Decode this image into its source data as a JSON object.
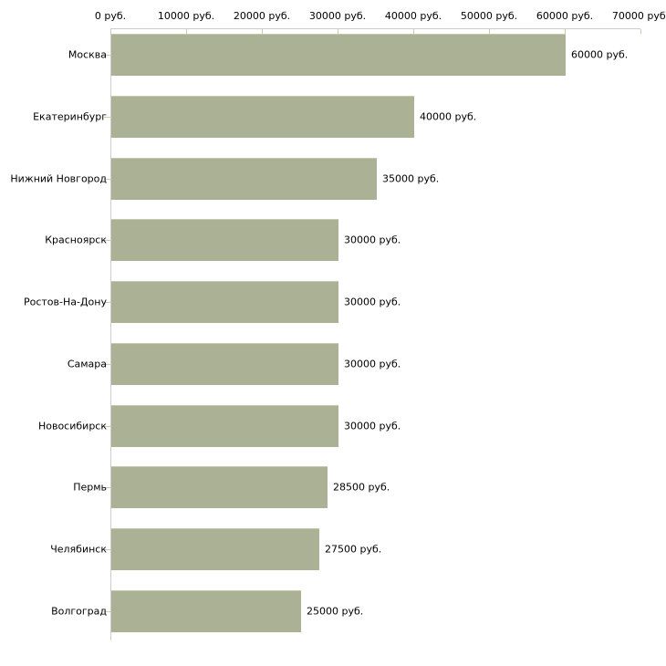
{
  "chart_data": {
    "type": "bar",
    "orientation": "horizontal",
    "title": "",
    "xlabel": "",
    "ylabel": "",
    "categories": [
      "Москва",
      "Екатеринбург",
      "Нижний Новгород",
      "Красноярск",
      "Ростов-На-Дону",
      "Самара",
      "Новосибирск",
      "Пермь",
      "Челябинск",
      "Волгоград"
    ],
    "values": [
      60000,
      40000,
      35000,
      30000,
      30000,
      30000,
      30000,
      28500,
      27500,
      25000
    ],
    "value_labels": [
      "60000 руб.",
      "40000 руб.",
      "35000 руб.",
      "30000 руб.",
      "30000 руб.",
      "30000 руб.",
      "30000 руб.",
      "28500 руб.",
      "27500 руб.",
      "25000 руб."
    ],
    "x_tick_values": [
      0,
      10000,
      20000,
      30000,
      40000,
      50000,
      60000,
      70000
    ],
    "x_tick_labels": [
      "0 руб.",
      "10000 руб.",
      "20000 руб.",
      "30000 руб.",
      "40000 руб.",
      "50000 руб.",
      "60000 руб.",
      "70000 руб."
    ],
    "xlim": [
      0,
      70000
    ],
    "grid": false,
    "legend": null,
    "colors": {
      "bar_fill": "#abb194",
      "bar_edge": "#c6c9ae",
      "axis_line": "#cccccc",
      "tick_mark": "#c9cba9",
      "text": "#000000",
      "background": "#ffffff"
    }
  }
}
